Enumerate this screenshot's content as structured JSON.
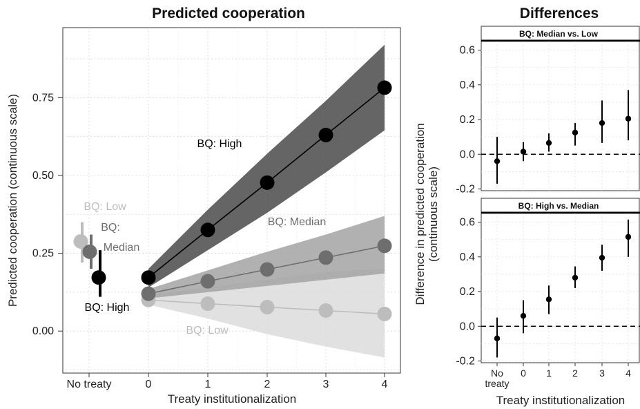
{
  "colors": {
    "high": "#000000",
    "median": "#6e6e6e",
    "low": "#bdbdbd",
    "band_high": "#4a4a4a",
    "band_median": "#a3a3a3",
    "band_low": "#dcdcdc"
  },
  "chart_data": [
    {
      "type": "line",
      "title": "Predicted cooperation",
      "xlabel": "Treaty institutionalization",
      "ylabel": "Predicted cooperation (continuous scale)",
      "x_categories": [
        "No treaty",
        "0",
        "1",
        "2",
        "3",
        "4"
      ],
      "yticks": [
        "0.00",
        "0.25",
        "0.50",
        "0.75"
      ],
      "ylim": [
        -0.135,
        0.975
      ],
      "grid": true,
      "series": [
        {
          "name": "BQ: High",
          "color_key": "high",
          "no_treaty": {
            "value": 0.172,
            "lo": 0.11,
            "hi": 0.26
          },
          "x": [
            0,
            1,
            2,
            3,
            4
          ],
          "y": [
            0.172,
            0.325,
            0.477,
            0.63,
            0.782
          ],
          "band_lo": [
            0.14,
            0.26,
            0.38,
            0.51,
            0.645
          ],
          "band_hi": [
            0.2,
            0.39,
            0.57,
            0.74,
            0.92
          ]
        },
        {
          "name": "BQ: Median",
          "color_key": "median",
          "no_treaty": {
            "value": 0.255,
            "lo": 0.2,
            "hi": 0.31
          },
          "x": [
            0,
            1,
            2,
            3,
            4
          ],
          "y": [
            0.12,
            0.16,
            0.198,
            0.236,
            0.274
          ],
          "band_lo": [
            0.105,
            0.125,
            0.145,
            0.165,
            0.185
          ],
          "band_hi": [
            0.135,
            0.195,
            0.255,
            0.31,
            0.37
          ]
        },
        {
          "name": "BQ: Low",
          "color_key": "low",
          "no_treaty": {
            "value": 0.288,
            "lo": 0.22,
            "hi": 0.35
          },
          "x": [
            0,
            1,
            2,
            3,
            4
          ],
          "y": [
            0.1,
            0.088,
            0.077,
            0.066,
            0.055
          ],
          "band_lo": [
            0.085,
            0.04,
            -0.01,
            -0.05,
            -0.085
          ],
          "band_hi": [
            0.115,
            0.14,
            0.165,
            0.19,
            0.2
          ]
        }
      ],
      "annotations": [
        {
          "text": "BQ: High",
          "color_key": "high"
        },
        {
          "text": "BQ: Median",
          "color_key": "median"
        },
        {
          "text": "BQ: Low",
          "color_key": "low"
        },
        {
          "text": "BQ: Low",
          "color_key": "low"
        },
        {
          "text": "BQ:",
          "color_key": "median"
        },
        {
          "text": "Median",
          "color_key": "median"
        },
        {
          "text": "BQ: High",
          "color_key": "high"
        }
      ]
    },
    {
      "type": "scatter",
      "title": "Differences",
      "xlabel": "Treaty institutionalization",
      "ylabel_lines": [
        "Difference in predicted cooperation",
        "(continuous scale)"
      ],
      "x_categories": [
        "No",
        "0",
        "1",
        "2",
        "3",
        "4"
      ],
      "x_category_sub": "treaty",
      "yticks": [
        "-0.2",
        "0.0",
        "0.2",
        "0.4",
        "0.6"
      ],
      "ylim": [
        -0.21,
        0.65
      ],
      "reference_line": 0.0,
      "panels": [
        {
          "strip": "BQ: Median vs. Low",
          "values": [
            -0.04,
            0.015,
            0.065,
            0.125,
            0.18,
            0.205
          ],
          "lo": [
            -0.17,
            -0.04,
            0.015,
            0.05,
            0.065,
            0.08
          ],
          "hi": [
            0.1,
            0.07,
            0.12,
            0.18,
            0.31,
            0.37
          ]
        },
        {
          "strip": "BQ: High vs. Median",
          "values": [
            -0.07,
            0.06,
            0.155,
            0.28,
            0.395,
            0.515
          ],
          "lo": [
            -0.18,
            -0.04,
            0.07,
            0.22,
            0.32,
            0.4
          ],
          "hi": [
            0.05,
            0.15,
            0.235,
            0.345,
            0.47,
            0.615
          ]
        }
      ]
    }
  ]
}
